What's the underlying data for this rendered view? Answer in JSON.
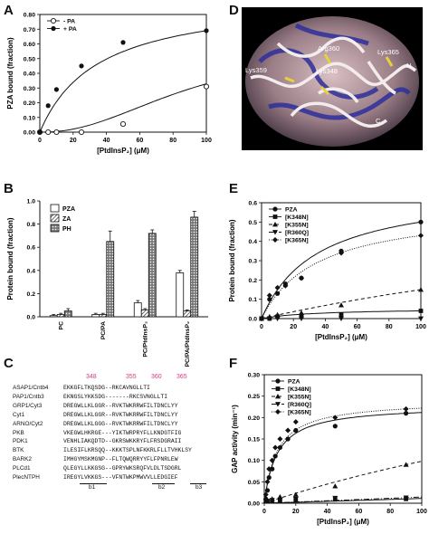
{
  "panels": {
    "A": {
      "label": "A",
      "chart_data": {
        "type": "line",
        "ylabel": "PZA bound (fraction)",
        "xlabel": "[PtdInsP₂] (μM)",
        "xlim": [
          0,
          100
        ],
        "ylim": [
          0,
          0.8
        ],
        "xticks": [
          "0",
          "20",
          "40",
          "60",
          "80",
          "100"
        ],
        "yticks": [
          "0.00",
          "0.10",
          "0.20",
          "0.30",
          "0.40",
          "0.50",
          "0.60",
          "0.70",
          "0.80"
        ],
        "legend": {
          "position": "top-left"
        },
        "series": [
          {
            "name": "- PA",
            "marker": "open-circle",
            "x": [
              0,
              5,
              10,
              25,
              50,
              100
            ],
            "y": [
              0.0,
              0.0,
              0.0,
              0.0,
              0.055,
              0.31
            ],
            "fit": "sigmoid"
          },
          {
            "name": "+ PA",
            "marker": "filled-circle",
            "x": [
              0,
              5,
              10,
              25,
              50,
              100
            ],
            "y": [
              0.0,
              0.18,
              0.29,
              0.45,
              0.61,
              0.69
            ],
            "fit": "hyperbolic"
          }
        ]
      }
    },
    "D": {
      "label": "D",
      "structure_labels": [
        "Arg360",
        "Lys365",
        "Lys359",
        "Lys348",
        "N",
        "C"
      ]
    },
    "B": {
      "label": "B",
      "chart_data": {
        "type": "bar",
        "ylabel": "Protein bound (fraction)",
        "ylim": [
          0,
          1.0
        ],
        "yticks": [
          "0.0",
          "0.2",
          "0.4",
          "0.6",
          "0.8",
          "1.0"
        ],
        "categories": [
          "PC",
          "PC/PA",
          "PC/PtdInsP₂",
          "PC/PA/PtdInsP₂"
        ],
        "legend": {
          "position": "top-left"
        },
        "series": [
          {
            "name": "PZA",
            "pattern": "open",
            "values": [
              0.01,
              0.02,
              0.12,
              0.38
            ],
            "errors": [
              0.01,
              0.01,
              0.02,
              0.02
            ]
          },
          {
            "name": "ZA",
            "pattern": "hatched",
            "values": [
              0.02,
              0.02,
              0.06,
              0.05
            ],
            "errors": [
              0.01,
              0.01,
              0.01,
              0.01
            ]
          },
          {
            "name": "PH",
            "pattern": "crosshatched",
            "values": [
              0.05,
              0.65,
              0.72,
              0.86
            ],
            "errors": [
              0.02,
              0.09,
              0.03,
              0.05
            ]
          }
        ]
      }
    },
    "E": {
      "label": "E",
      "chart_data": {
        "type": "line",
        "ylabel": "Protein bound (fraction)",
        "xlabel": "[PtdInsP₂] (μM)",
        "xlim": [
          0,
          100
        ],
        "ylim": [
          0,
          0.6
        ],
        "xticks": [
          "0",
          "20",
          "40",
          "60",
          "80",
          "100"
        ],
        "yticks": [
          "0.0",
          "0.1",
          "0.2",
          "0.3",
          "0.4",
          "0.5",
          "0.6"
        ],
        "legend": {
          "position": "top-left"
        },
        "series": [
          {
            "name": "PZA",
            "marker": "filled-circle",
            "line": "solid",
            "x": [
              5,
              10,
              15,
              25,
              50,
              100
            ],
            "y": [
              0.1,
              0.13,
              0.18,
              0.21,
              0.35,
              0.5
            ]
          },
          {
            "name": "[K348N]",
            "marker": "filled-square",
            "line": "solid",
            "x": [
              0,
              5,
              10,
              25,
              50,
              100
            ],
            "y": [
              0.0,
              0.0,
              0.01,
              0.01,
              0.02,
              0.04
            ]
          },
          {
            "name": "[K355N]",
            "marker": "triangle-up",
            "line": "dashed",
            "x": [
              0,
              5,
              10,
              25,
              50,
              100
            ],
            "y": [
              0.0,
              0.01,
              0.02,
              0.03,
              0.07,
              0.15
            ]
          },
          {
            "name": "[R360Q]",
            "marker": "triangle-down",
            "line": "dash-dot",
            "x": [
              0,
              5,
              10,
              25,
              50,
              100
            ],
            "y": [
              0.0,
              0.0,
              0.0,
              0.0,
              0.0,
              0.0
            ]
          },
          {
            "name": "[K365N]",
            "marker": "diamond",
            "line": "dotted",
            "x": [
              5,
              10,
              15,
              25,
              50,
              100
            ],
            "y": [
              0.12,
              0.16,
              0.17,
              0.21,
              0.34,
              0.43
            ]
          }
        ]
      }
    },
    "C": {
      "label": "C",
      "position_numbers": [
        "348",
        "355",
        "360",
        "365"
      ],
      "names": [
        "ASAP1/Cntb4",
        "PAP1/Cntb3",
        "GRP1/Cyt3",
        "Cyt1",
        "ARNO/Cyt2",
        "PKB",
        "PDK1",
        "BTK",
        "BARK2",
        "PLCd1",
        "PlecNTPH"
      ],
      "sequences": [
        "EKKGFLTKQSDG--RKCAVNGLLTI",
        "EKNGSLYKKSDG-------RKCSVNGLLTI",
        "DREGWLLKLGGR--RVKTWKRRWFILTDNCLYY",
        "DREGWLLKLGGR--RVKTWKRRWFILTDNCLYY",
        "DREGWLLKLGGG--RVKTWKRRWFILTDNCLYY",
        "VKEGWLHKRGE---YIKTWRPRYFLLKNDGTFIG",
        "VENHLIAKQDTD--GKRSWKKRYFLFRSDGRAII",
        "ILESIFLKRSQQ--KKKTSPLNFKKRLFLLTVHKLSY",
        "IMHGYMSKMGNP--FLTQWQRRYYFLFPNRLEW",
        "QLEGYLLKKGSG--GPRYWKSRQFVLDLTSDGRL",
        "IREGYLVKKGS---VFNTWKPMWVVLLEDGIEF"
      ],
      "structure_marks": [
        "b1",
        "b2",
        "b3"
      ]
    },
    "F": {
      "label": "F",
      "chart_data": {
        "type": "line",
        "ylabel": "GAP activity (min⁻¹)",
        "xlabel": "[PtdInsP₂] (μM)",
        "xlim": [
          0,
          100
        ],
        "ylim": [
          0,
          0.3
        ],
        "xticks": [
          "0",
          "20",
          "40",
          "60",
          "80",
          "100"
        ],
        "yticks": [
          "0.00",
          "0.05",
          "0.10",
          "0.15",
          "0.20",
          "0.25",
          "0.30"
        ],
        "legend": {
          "position": "top-left"
        },
        "series": [
          {
            "name": "PZA",
            "marker": "filled-circle",
            "line": "solid",
            "x": [
              1,
              2,
              3,
              5,
              7,
              10,
              15,
              20,
              45,
              90
            ],
            "y": [
              0.01,
              0.03,
              0.06,
              0.08,
              0.11,
              0.13,
              0.15,
              0.17,
              0.18,
              0.21
            ]
          },
          {
            "name": "[K348N]",
            "marker": "filled-square",
            "line": "solid",
            "x": [
              1,
              2,
              5,
              10,
              20,
              45,
              90
            ],
            "y": [
              0.005,
              0.005,
              0.006,
              0.007,
              0.008,
              0.009,
              0.01
            ]
          },
          {
            "name": "[K355N]",
            "marker": "triangle-up",
            "line": "dashed",
            "x": [
              1,
              2,
              5,
              10,
              20,
              45,
              90
            ],
            "y": [
              0.005,
              0.006,
              0.01,
              0.015,
              0.02,
              0.04,
              0.09
            ]
          },
          {
            "name": "[R360Q]",
            "marker": "triangle-down",
            "line": "dash-dot",
            "x": [
              1,
              2,
              5,
              10,
              20,
              45,
              90
            ],
            "y": [
              0.005,
              0.005,
              0.007,
              0.008,
              0.01,
              0.012,
              0.013
            ]
          },
          {
            "name": "[K365N]",
            "marker": "diamond",
            "line": "dotted",
            "x": [
              1,
              2,
              3,
              5,
              7,
              10,
              15,
              20,
              45,
              90
            ],
            "y": [
              0.02,
              0.05,
              0.08,
              0.1,
              0.13,
              0.15,
              0.17,
              0.19,
              0.2,
              0.22
            ]
          }
        ]
      }
    }
  }
}
